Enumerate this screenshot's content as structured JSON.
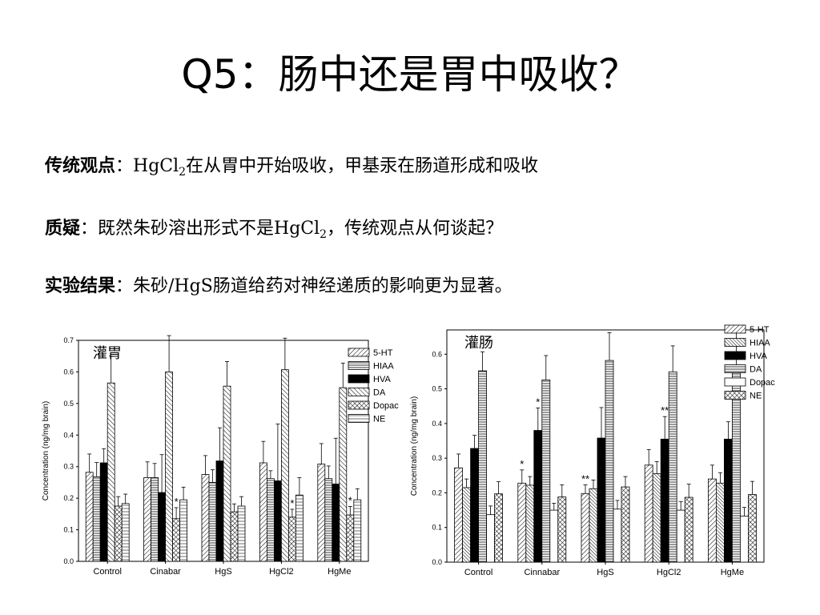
{
  "title": "Q5：肠中还是胃中吸收？",
  "lines": {
    "l1_key": "传统观点",
    "l1_pre": "：HgCl",
    "l1_sub": "2",
    "l1_post": "在从胃中开始吸收，甲基汞在肠道形成和吸收",
    "l2_key": "质疑",
    "l2_pre": "：既然朱砂溶出形式不是HgCl",
    "l2_sub": "2",
    "l2_post": "，传统观点从何谈起？",
    "l3_key": "实验结果",
    "l3_post": "：朱砂/HgS肠道给药对神经递质的影响更为显著。"
  },
  "chart_data": [
    {
      "type": "bar",
      "title": "灌胃",
      "ylabel": "Concentration (ng/mg brain)",
      "xlabel": "",
      "ylim": [
        0,
        0.7
      ],
      "yticks": [
        "0.0",
        "0.1",
        "0.2",
        "0.3",
        "0.4",
        "0.5",
        "0.6",
        "0.7"
      ],
      "categories": [
        "Control",
        "Cinabar",
        "HgS",
        "HgCl2",
        "HgMe"
      ],
      "legend_position": "top-right",
      "series": [
        {
          "name": "5-HT",
          "pattern": "fdiag",
          "values": [
            0.282,
            0.265,
            0.275,
            0.312,
            0.308
          ],
          "errors": [
            0.058,
            0.05,
            0.06,
            0.068,
            0.065
          ]
        },
        {
          "name": "HIAA",
          "pattern": "hline",
          "values": [
            0.268,
            0.265,
            0.25,
            0.262,
            0.262
          ],
          "errors": [
            0.045,
            0.045,
            0.04,
            0.025,
            0.04
          ]
        },
        {
          "name": "HVA",
          "pattern": "solid",
          "values": [
            0.312,
            0.218,
            0.318,
            0.255,
            0.245
          ],
          "errors": [
            0.045,
            0.12,
            0.105,
            0.18,
            0.145
          ]
        },
        {
          "name": "DA",
          "pattern": "bdiag",
          "values": [
            0.565,
            0.6,
            0.555,
            0.607,
            0.55
          ],
          "errors": [
            0.085,
            0.115,
            0.078,
            0.1,
            0.078
          ]
        },
        {
          "name": "Dopac",
          "pattern": "cross",
          "values": [
            0.175,
            0.135,
            0.157,
            0.14,
            0.147
          ],
          "errors": [
            0.03,
            0.035,
            0.025,
            0.025,
            0.027
          ]
        },
        {
          "name": "NE",
          "pattern": "hline2",
          "values": [
            0.183,
            0.195,
            0.175,
            0.21,
            0.195
          ],
          "errors": [
            0.03,
            0.04,
            0.03,
            0.055,
            0.035
          ]
        }
      ],
      "annotations": [
        {
          "text": "*",
          "category": "Cinabar",
          "series": "Dopac"
        },
        {
          "text": "*",
          "category": "HgCl2",
          "series": "Dopac"
        },
        {
          "text": "*",
          "category": "HgMe",
          "series": "Dopac"
        }
      ]
    },
    {
      "type": "bar",
      "title": "灌肠",
      "ylabel": "Concentration (ng/mg brain)",
      "xlabel": "",
      "ylim": [
        0,
        0.67
      ],
      "yticks": [
        "0.0",
        "0.1",
        "0.2",
        "0.3",
        "0.4",
        "0.5",
        "0.6"
      ],
      "categories": [
        "Control",
        "Cinnabar",
        "HgS",
        "HgCl2",
        "HgMe"
      ],
      "legend_position": "top-right",
      "series": [
        {
          "name": "5-HT",
          "pattern": "fdiag",
          "values": [
            0.272,
            0.228,
            0.198,
            0.28,
            0.24
          ],
          "errors": [
            0.04,
            0.038,
            0.025,
            0.045,
            0.04
          ]
        },
        {
          "name": "HIAA",
          "pattern": "bdiag2",
          "values": [
            0.215,
            0.222,
            0.212,
            0.255,
            0.228
          ],
          "errors": [
            0.025,
            0.025,
            0.025,
            0.035,
            0.03
          ]
        },
        {
          "name": "HVA",
          "pattern": "solid",
          "values": [
            0.328,
            0.38,
            0.358,
            0.355,
            0.355
          ],
          "errors": [
            0.038,
            0.065,
            0.088,
            0.065,
            0.05
          ]
        },
        {
          "name": "DA",
          "pattern": "hline",
          "values": [
            0.552,
            0.526,
            0.582,
            0.549,
            0.569
          ],
          "errors": [
            0.055,
            0.07,
            0.08,
            0.075,
            0.095
          ]
        },
        {
          "name": "Dopac",
          "pattern": "white",
          "values": [
            0.137,
            0.15,
            0.153,
            0.15,
            0.133
          ],
          "errors": [
            0.025,
            0.02,
            0.025,
            0.025,
            0.025
          ]
        },
        {
          "name": "NE",
          "pattern": "cross",
          "values": [
            0.197,
            0.188,
            0.217,
            0.187,
            0.195
          ],
          "errors": [
            0.035,
            0.035,
            0.03,
            0.038,
            0.038
          ]
        }
      ],
      "annotations": [
        {
          "text": "*",
          "category": "Cinnabar",
          "series": "5-HT"
        },
        {
          "text": "*",
          "category": "Cinnabar",
          "series": "HVA"
        },
        {
          "text": "**",
          "category": "HgS",
          "series": "5-HT"
        },
        {
          "text": "**",
          "category": "HgCl2",
          "series": "HVA"
        }
      ]
    }
  ]
}
